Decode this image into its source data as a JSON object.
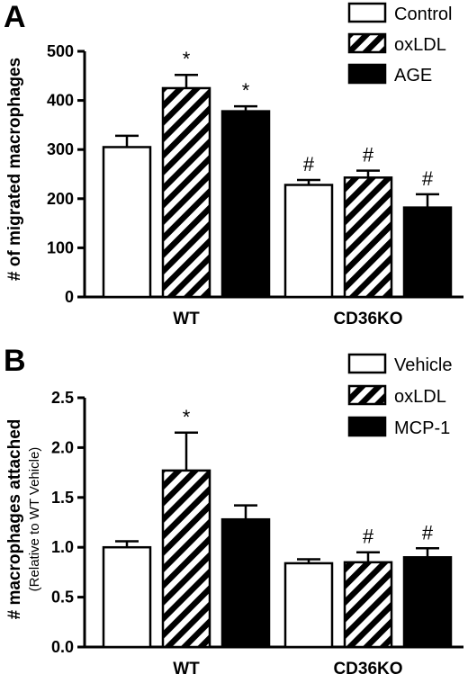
{
  "chart_data": [
    {
      "panel": "A",
      "type": "bar",
      "categories": [
        "WT",
        "CD36KO"
      ],
      "ylabel": "# of migrated macrophages",
      "ylim": [
        0,
        500
      ],
      "yticks": [
        "0",
        "100",
        "200",
        "300",
        "400",
        "500"
      ],
      "series": [
        {
          "name": "Control",
          "fill": "white",
          "values": [
            305,
            228
          ],
          "errors": [
            23,
            10
          ],
          "markers": [
            "",
            "#"
          ]
        },
        {
          "name": "oxLDL",
          "fill": "hatch",
          "values": [
            425,
            243
          ],
          "errors": [
            27,
            14
          ],
          "markers": [
            "*",
            "#"
          ]
        },
        {
          "name": "AGE",
          "fill": "black",
          "values": [
            378,
            182
          ],
          "errors": [
            10,
            27
          ],
          "markers": [
            "*",
            "#"
          ]
        }
      ],
      "legend_position": "top-right"
    },
    {
      "panel": "B",
      "type": "bar",
      "categories": [
        "WT",
        "CD36KO"
      ],
      "ylabel": "# macrophages attached",
      "ylabel_sub": "(Relative to WT Vehicle)",
      "ylim": [
        0,
        2.5
      ],
      "yticks": [
        "0.0",
        "0.5",
        "1.0",
        "1.5",
        "2.0",
        "2.5"
      ],
      "series": [
        {
          "name": "Vehicle",
          "fill": "white",
          "values": [
            1.0,
            0.84
          ],
          "errors": [
            0.06,
            0.04
          ],
          "markers": [
            "",
            ""
          ]
        },
        {
          "name": "oxLDL",
          "fill": "hatch",
          "values": [
            1.77,
            0.85
          ],
          "errors": [
            0.38,
            0.1
          ],
          "markers": [
            "*",
            "#"
          ]
        },
        {
          "name": "MCP-1",
          "fill": "black",
          "values": [
            1.28,
            0.9
          ],
          "errors": [
            0.14,
            0.09
          ],
          "markers": [
            "",
            "#"
          ]
        }
      ],
      "legend_position": "top-right"
    }
  ],
  "colors": {
    "ink": "#000000",
    "paper": "#ffffff"
  }
}
